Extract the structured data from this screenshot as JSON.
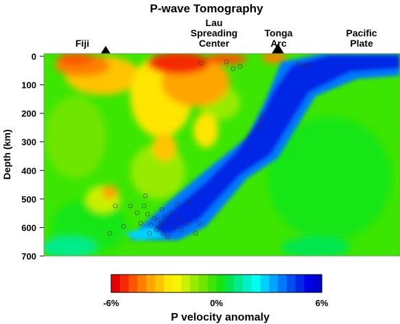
{
  "chart_data": {
    "type": "heatmap",
    "title": "P-wave Tomography",
    "xlabel": "",
    "ylabel": "Depth (km)",
    "ylim": [
      0,
      700
    ],
    "y_ticks": [
      "0",
      "100",
      "200",
      "300",
      "400",
      "500",
      "600",
      "700"
    ],
    "features": [
      {
        "name": "Fiji",
        "label": "Fiji",
        "marker": "triangle"
      },
      {
        "name": "Lau Spreading Center",
        "label": "Lau\nSpreading\nCenter",
        "marker": "none"
      },
      {
        "name": "Tonga Arc",
        "label": "Tonga\nArc",
        "marker": "triangle"
      },
      {
        "name": "Pacific Plate",
        "label": "Pacific\nPlate",
        "marker": "none"
      }
    ],
    "colorbar": {
      "title": "P velocity anomaly",
      "tick_labels": [
        "-6%",
        "0%",
        "6%"
      ],
      "range_percent": [
        -6,
        6
      ],
      "colors": [
        "#e60000",
        "#f52a00",
        "#ff5500",
        "#ff7f00",
        "#ffa500",
        "#ffc400",
        "#ffe600",
        "#f5f500",
        "#c8f000",
        "#96eb00",
        "#6ee600",
        "#3ce600",
        "#14e614",
        "#00e650",
        "#00eb8c",
        "#00f0c8",
        "#00fff0",
        "#00d2ff",
        "#00a5ff",
        "#0078ff",
        "#0050f0",
        "#0028e6",
        "#0000e6",
        "#0000cc"
      ]
    },
    "earthquakes_depth_range_km": [
      20,
      640
    ]
  }
}
